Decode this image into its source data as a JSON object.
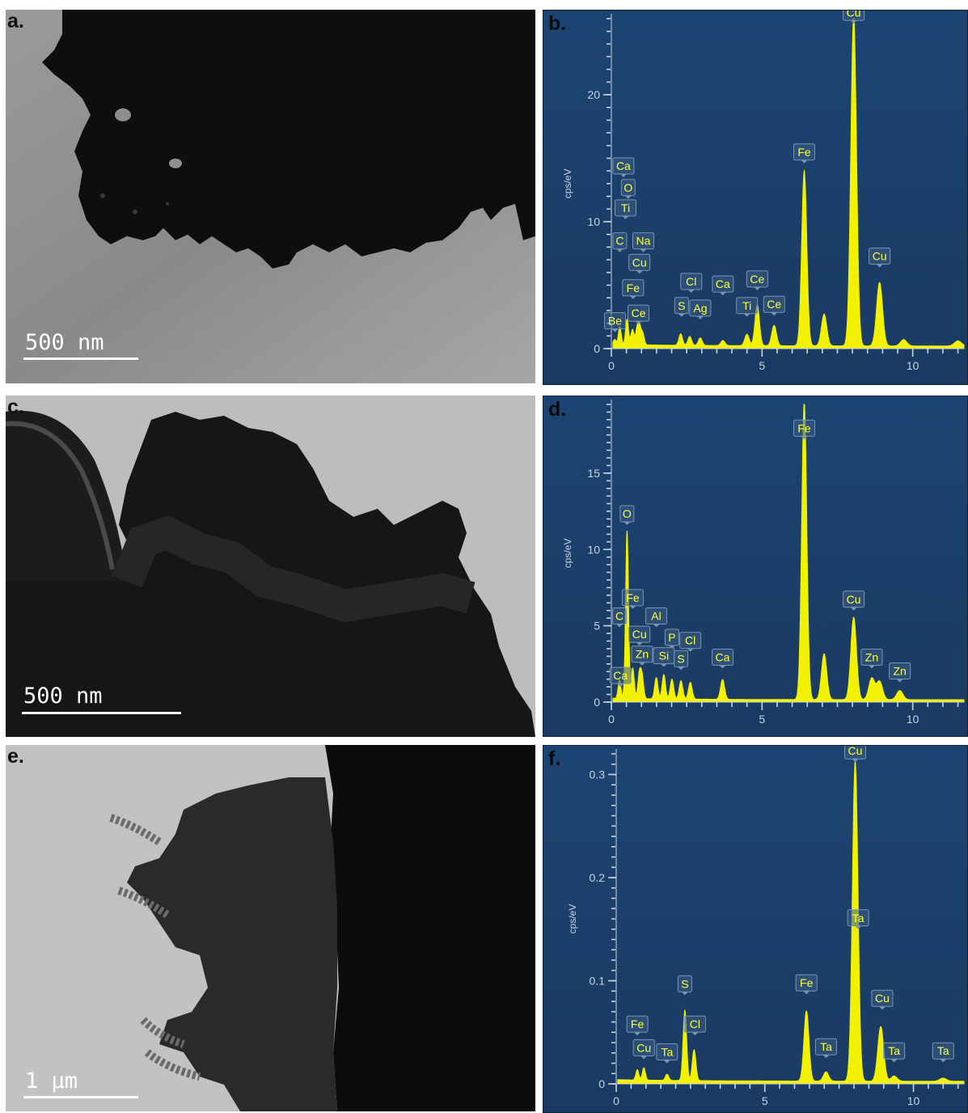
{
  "colors": {
    "eds_bg_top": "#1c4472",
    "eds_bg_bottom": "#1a3a63",
    "spectrum": "#f2f200",
    "axis": "#c8d3df",
    "label_text": "#ffff3c",
    "label_box": "#3a5f86"
  },
  "tem_panels": [
    {
      "letter": "a.",
      "scale_label": "500 nm"
    },
    {
      "letter": "c.",
      "scale_label": "500 nm"
    },
    {
      "letter": "e.",
      "scale_label": "1 μm"
    }
  ],
  "chart_data": [
    {
      "type": "area",
      "panel": "b.",
      "ylabel": "cps/eV",
      "xlim": [
        0,
        11.7
      ],
      "ylim": [
        0,
        26
      ],
      "x_ticks": [
        0,
        5,
        10
      ],
      "y_ticks": [
        0,
        10,
        20
      ],
      "peaks": [
        {
          "x": 0.11,
          "y": 0.4
        },
        {
          "x": 0.28,
          "y": 1.4
        },
        {
          "x": 0.52,
          "y": 2.0
        },
        {
          "x": 0.7,
          "y": 1.2
        },
        {
          "x": 0.85,
          "y": 1.1
        },
        {
          "x": 0.93,
          "y": 1.4
        },
        {
          "x": 1.04,
          "y": 0.9
        },
        {
          "x": 2.3,
          "y": 0.9
        },
        {
          "x": 2.6,
          "y": 0.7
        },
        {
          "x": 2.95,
          "y": 0.6
        },
        {
          "x": 3.7,
          "y": 0.4
        },
        {
          "x": 4.5,
          "y": 0.9
        },
        {
          "x": 4.84,
          "y": 3.2
        },
        {
          "x": 5.4,
          "y": 1.6
        },
        {
          "x": 6.4,
          "y": 13.8
        },
        {
          "x": 7.06,
          "y": 2.5
        },
        {
          "x": 8.04,
          "y": 26
        },
        {
          "x": 8.9,
          "y": 5.0
        },
        {
          "x": 9.7,
          "y": 0.5
        },
        {
          "x": 11.5,
          "y": 0.4
        }
      ],
      "labels": [
        {
          "text": "Cu",
          "x": 8.04,
          "y": 25.6
        },
        {
          "text": "Fe",
          "x": 6.4,
          "y": 14.6
        },
        {
          "text": "Cu",
          "x": 8.9,
          "y": 6.4
        },
        {
          "text": "Ca",
          "x": 0.4,
          "y": 13.5
        },
        {
          "text": "O",
          "x": 0.56,
          "y": 11.8
        },
        {
          "text": "Ti",
          "x": 0.47,
          "y": 10.2
        },
        {
          "text": "C",
          "x": 0.28,
          "y": 7.6
        },
        {
          "text": "Na",
          "x": 1.06,
          "y": 7.6
        },
        {
          "text": "Cu",
          "x": 0.93,
          "y": 5.9
        },
        {
          "text": "Fe",
          "x": 0.72,
          "y": 3.9
        },
        {
          "text": "Ce",
          "x": 0.9,
          "y": 1.9
        },
        {
          "text": "Be",
          "x": 0.12,
          "y": 1.3
        },
        {
          "text": "Cl",
          "x": 2.65,
          "y": 4.4
        },
        {
          "text": "Ca",
          "x": 3.7,
          "y": 4.2
        },
        {
          "text": "Ce",
          "x": 4.84,
          "y": 4.6
        },
        {
          "text": "S",
          "x": 2.33,
          "y": 2.5
        },
        {
          "text": "Ag",
          "x": 2.95,
          "y": 2.3
        },
        {
          "text": "Ti",
          "x": 4.5,
          "y": 2.5
        },
        {
          "text": "Ce",
          "x": 5.4,
          "y": 2.6
        }
      ]
    },
    {
      "type": "area",
      "panel": "d.",
      "ylabel": "cps/eV",
      "xlim": [
        0,
        11.7
      ],
      "ylim": [
        0,
        19.5
      ],
      "x_ticks": [
        0,
        5,
        10
      ],
      "y_ticks": [
        0,
        5,
        10,
        15
      ],
      "peaks": [
        {
          "x": 0.27,
          "y": 1.2
        },
        {
          "x": 0.52,
          "y": 11.0
        },
        {
          "x": 0.71,
          "y": 2.0
        },
        {
          "x": 0.93,
          "y": 1.6
        },
        {
          "x": 1.02,
          "y": 1.4
        },
        {
          "x": 1.49,
          "y": 1.4
        },
        {
          "x": 1.74,
          "y": 1.6
        },
        {
          "x": 2.01,
          "y": 1.3
        },
        {
          "x": 2.31,
          "y": 1.2
        },
        {
          "x": 2.62,
          "y": 1.1
        },
        {
          "x": 3.69,
          "y": 1.3
        },
        {
          "x": 6.4,
          "y": 19.5
        },
        {
          "x": 7.06,
          "y": 3.0
        },
        {
          "x": 8.04,
          "y": 5.4
        },
        {
          "x": 8.64,
          "y": 1.4
        },
        {
          "x": 8.9,
          "y": 1.2
        },
        {
          "x": 9.57,
          "y": 0.6
        }
      ],
      "labels": [
        {
          "text": "Fe",
          "x": 6.4,
          "y": 17.2
        },
        {
          "text": "O",
          "x": 0.52,
          "y": 11.6
        },
        {
          "text": "Fe",
          "x": 0.71,
          "y": 6.1
        },
        {
          "text": "C",
          "x": 0.27,
          "y": 4.9
        },
        {
          "text": "Al",
          "x": 1.49,
          "y": 4.9
        },
        {
          "text": "Cu",
          "x": 0.93,
          "y": 3.7
        },
        {
          "text": "P",
          "x": 2.01,
          "y": 3.5
        },
        {
          "text": "Cl",
          "x": 2.62,
          "y": 3.3
        },
        {
          "text": "Zn",
          "x": 1.02,
          "y": 2.4
        },
        {
          "text": "Si",
          "x": 1.74,
          "y": 2.3
        },
        {
          "text": "S",
          "x": 2.31,
          "y": 2.1
        },
        {
          "text": "Ca",
          "x": 3.69,
          "y": 2.2
        },
        {
          "text": "Ca",
          "x": 0.3,
          "y": 1.0
        },
        {
          "text": "Cu",
          "x": 8.04,
          "y": 6.0
        },
        {
          "text": "Zn",
          "x": 8.64,
          "y": 2.2
        },
        {
          "text": "Zn",
          "x": 9.57,
          "y": 1.3
        }
      ]
    },
    {
      "type": "area",
      "panel": "f.",
      "ylabel": "cps/eV",
      "xlim": [
        0,
        11.7
      ],
      "ylim": [
        0,
        0.32
      ],
      "x_ticks": [
        0,
        5,
        10
      ],
      "y_ticks": [
        0,
        0.1,
        0.2,
        0.3
      ],
      "y_tick_labels": [
        "0",
        "0.1",
        "0.2",
        "0.3"
      ],
      "peaks": [
        {
          "x": 0.71,
          "y": 0.01
        },
        {
          "x": 0.93,
          "y": 0.012
        },
        {
          "x": 1.71,
          "y": 0.006
        },
        {
          "x": 2.31,
          "y": 0.068
        },
        {
          "x": 2.62,
          "y": 0.03
        },
        {
          "x": 6.4,
          "y": 0.068
        },
        {
          "x": 7.06,
          "y": 0.009
        },
        {
          "x": 8.04,
          "y": 0.31
        },
        {
          "x": 8.9,
          "y": 0.053
        },
        {
          "x": 9.35,
          "y": 0.005
        },
        {
          "x": 11.0,
          "y": 0.003
        }
      ],
      "labels": [
        {
          "text": "Cu",
          "x": 8.04,
          "y": 0.312
        },
        {
          "text": "Ta",
          "x": 8.14,
          "y": 0.15
        },
        {
          "text": "S",
          "x": 2.31,
          "y": 0.086
        },
        {
          "text": "Fe",
          "x": 6.4,
          "y": 0.087
        },
        {
          "text": "Cu",
          "x": 8.95,
          "y": 0.072
        },
        {
          "text": "Cl",
          "x": 2.65,
          "y": 0.047
        },
        {
          "text": "Fe",
          "x": 0.71,
          "y": 0.047
        },
        {
          "text": "Cu",
          "x": 0.93,
          "y": 0.024
        },
        {
          "text": "Ta",
          "x": 1.71,
          "y": 0.02
        },
        {
          "text": "Ta",
          "x": 7.06,
          "y": 0.025
        },
        {
          "text": "Ta",
          "x": 9.35,
          "y": 0.021
        },
        {
          "text": "Ta",
          "x": 11.0,
          "y": 0.021
        }
      ]
    }
  ]
}
